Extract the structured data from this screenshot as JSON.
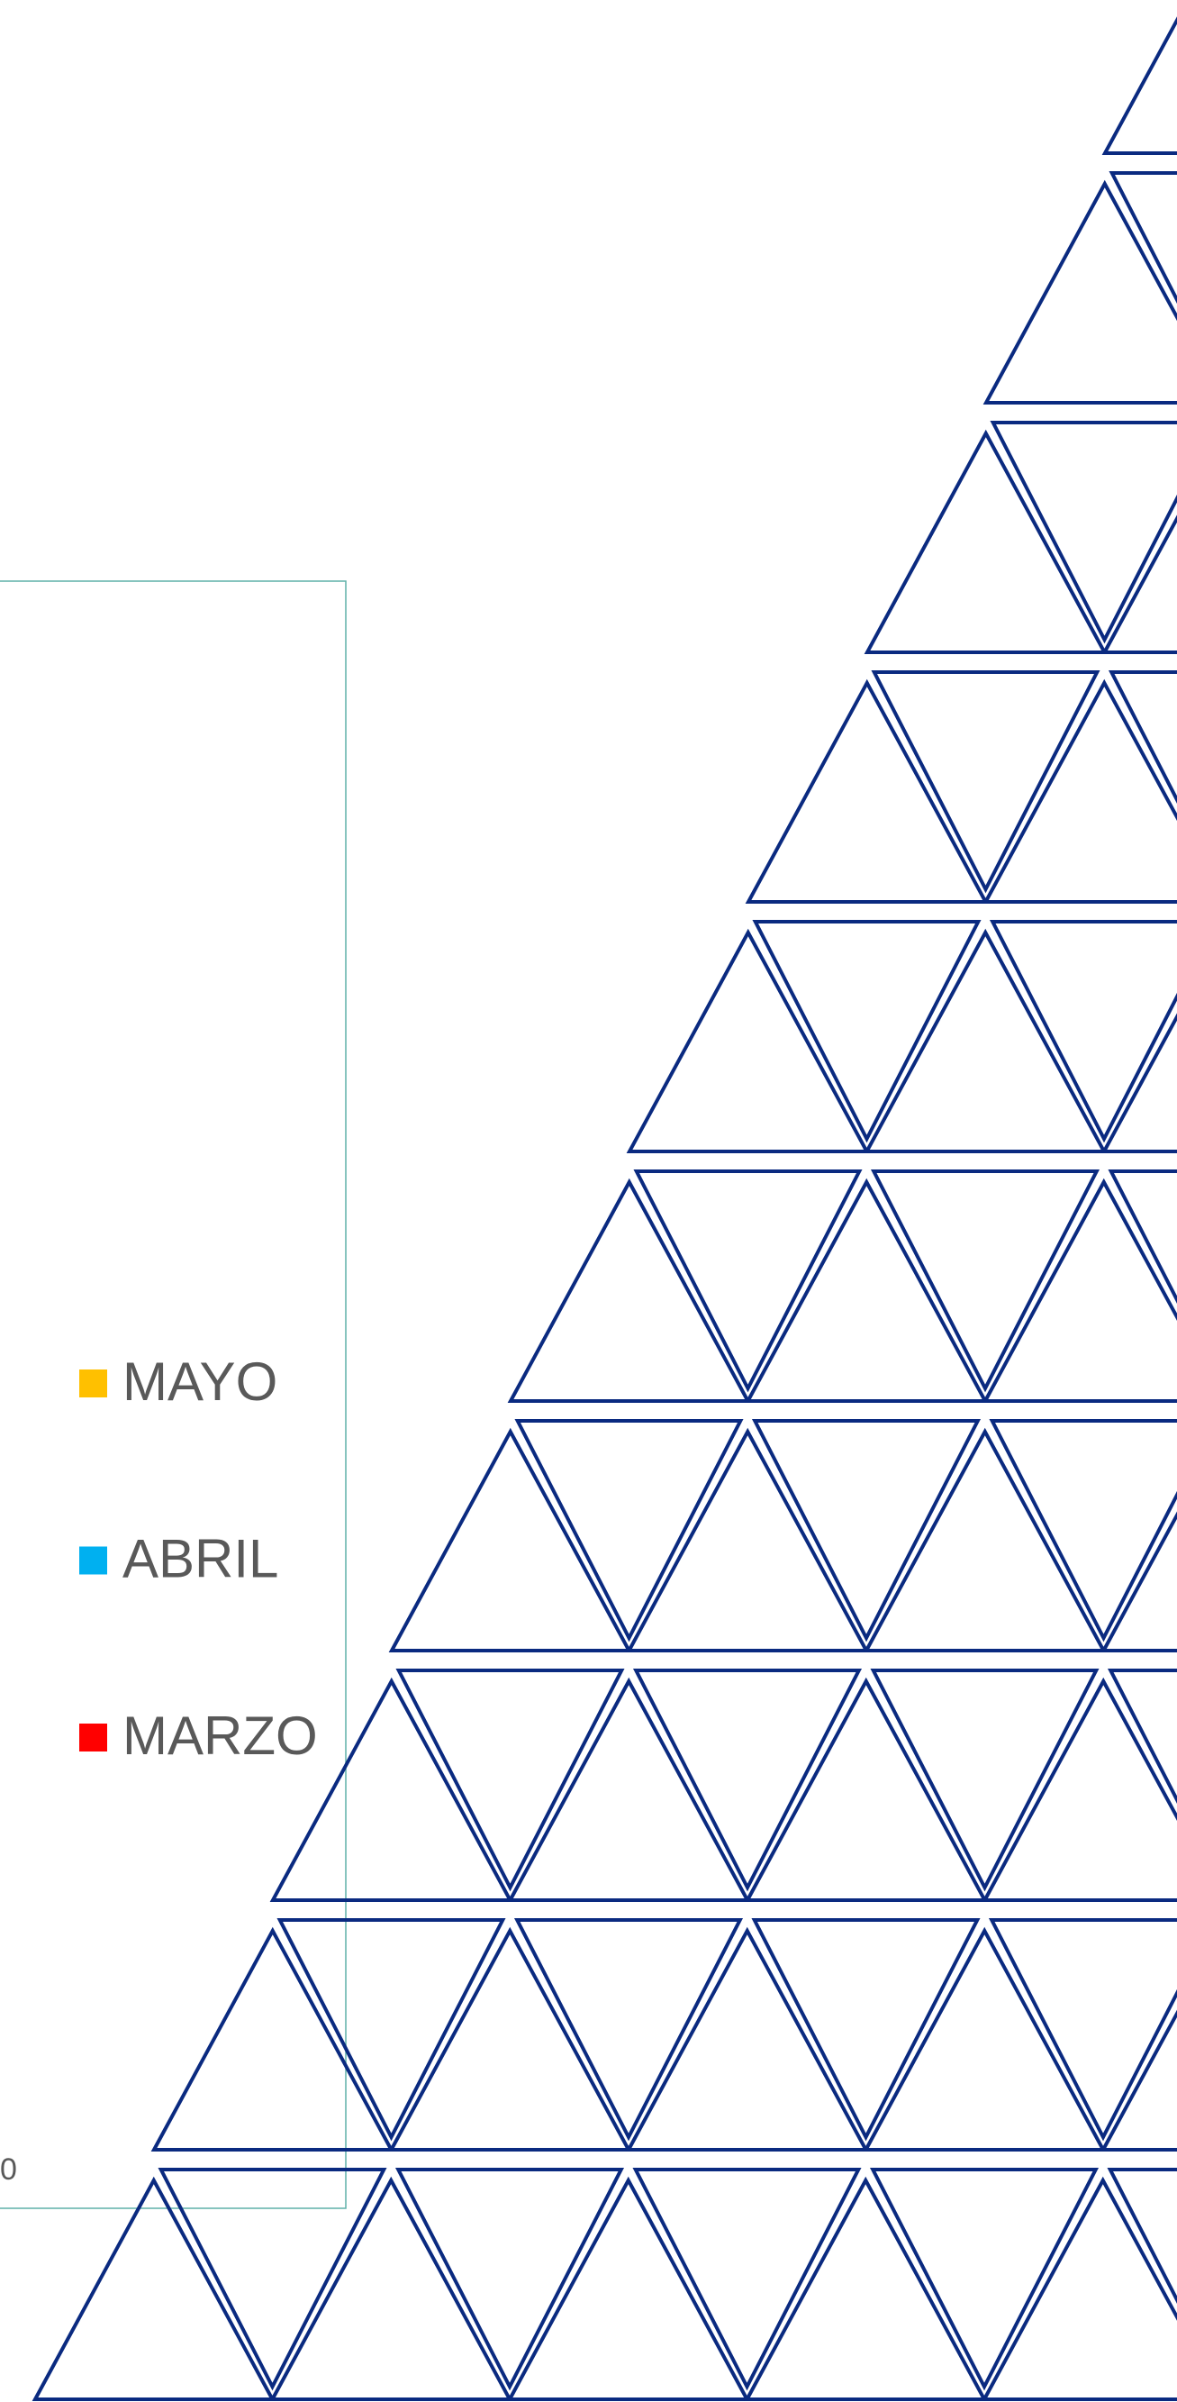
{
  "legend": {
    "items": [
      {
        "label": "MAYO",
        "color": "#ffc000"
      },
      {
        "label": "ABRIL",
        "color": "#00b0f0"
      },
      {
        "label": "MARZO",
        "color": "#ff0000"
      }
    ]
  },
  "axis_fragment": "0"
}
